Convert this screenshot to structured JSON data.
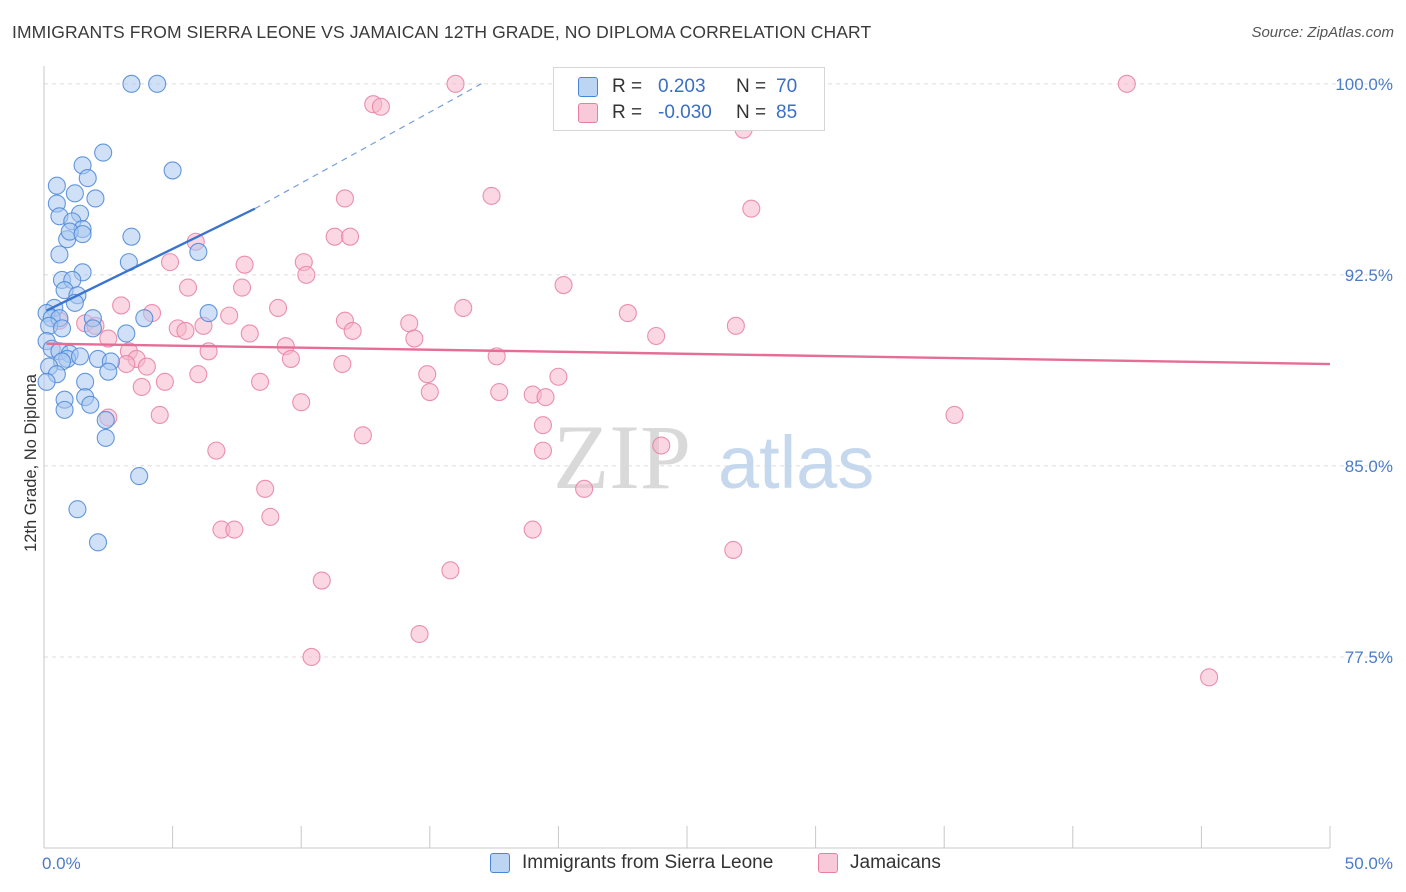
{
  "title": "IMMIGRANTS FROM SIERRA LEONE VS JAMAICAN 12TH GRADE, NO DIPLOMA CORRELATION CHART",
  "source": "Source: ZipAtlas.com",
  "watermark": {
    "zip": "ZIP",
    "atlas": "atlas"
  },
  "legend": {
    "rows": [
      {
        "r_label": "R =",
        "r_value": "0.203",
        "n_label": "N =",
        "n_value": "70",
        "color": "#4a86d8"
      },
      {
        "r_label": "R =",
        "r_value": "-0.030",
        "n_label": "N =",
        "n_value": "85",
        "color": "#e87fa3"
      }
    ]
  },
  "bottom_legend": [
    "Immigrants from Sierra Leone",
    "Jamaicans"
  ],
  "colors": {
    "blue_fill": "#a9c8f0",
    "blue_stroke": "#4a86d8",
    "blue_line": "#3a74cf",
    "pink_fill": "#f5b6cb",
    "pink_stroke": "#e87fa3",
    "pink_line": "#e56d97",
    "grid": "#dcdcdc",
    "tick_text": "#4a7cc9"
  },
  "chart_data": {
    "type": "scatter",
    "xlabel": "",
    "ylabel": "12th Grade, No Diploma",
    "xlim": [
      0,
      50
    ],
    "ylim": [
      70.0,
      100.7
    ],
    "x_tick_labels": [
      {
        "value": 0,
        "label": "0.0%"
      },
      {
        "value": 50,
        "label": "50.0%"
      }
    ],
    "y_tick_labels": [
      {
        "value": 100.0,
        "label": "100.0%"
      },
      {
        "value": 92.5,
        "label": "92.5%"
      },
      {
        "value": 85.0,
        "label": "85.0%"
      },
      {
        "value": 77.5,
        "label": "77.5%"
      }
    ],
    "grid": "horizontal dashed",
    "series": [
      {
        "name": "Immigrants from Sierra Leone",
        "color": "#4a86d8",
        "trend": {
          "x0": 0.1,
          "y0": 91.1,
          "x1": 8.2,
          "y1": 95.1,
          "dash_to_x": 17.0,
          "dash_to_y": 100.0
        },
        "points": [
          [
            3.4,
            100.0
          ],
          [
            4.4,
            100.0
          ],
          [
            2.3,
            97.3
          ],
          [
            1.5,
            96.8
          ],
          [
            1.7,
            96.3
          ],
          [
            5.0,
            96.6
          ],
          [
            0.5,
            96.0
          ],
          [
            1.2,
            95.7
          ],
          [
            0.5,
            95.3
          ],
          [
            2.0,
            95.5
          ],
          [
            1.4,
            94.9
          ],
          [
            0.6,
            94.8
          ],
          [
            1.1,
            94.6
          ],
          [
            1.5,
            94.3
          ],
          [
            3.4,
            94.0
          ],
          [
            0.9,
            93.9
          ],
          [
            1.0,
            94.2
          ],
          [
            1.5,
            94.1
          ],
          [
            0.6,
            93.3
          ],
          [
            6.0,
            93.4
          ],
          [
            3.3,
            93.0
          ],
          [
            1.5,
            92.6
          ],
          [
            0.7,
            92.3
          ],
          [
            1.1,
            92.3
          ],
          [
            0.8,
            91.9
          ],
          [
            1.3,
            91.7
          ],
          [
            1.2,
            91.4
          ],
          [
            0.4,
            91.2
          ],
          [
            0.1,
            91.0
          ],
          [
            0.3,
            90.8
          ],
          [
            0.6,
            90.8
          ],
          [
            1.9,
            90.8
          ],
          [
            6.4,
            91.0
          ],
          [
            3.9,
            90.8
          ],
          [
            0.2,
            90.5
          ],
          [
            0.7,
            90.4
          ],
          [
            1.9,
            90.4
          ],
          [
            3.2,
            90.2
          ],
          [
            0.1,
            89.9
          ],
          [
            0.3,
            89.6
          ],
          [
            0.6,
            89.5
          ],
          [
            1.0,
            89.4
          ],
          [
            0.9,
            89.2
          ],
          [
            1.4,
            89.3
          ],
          [
            0.7,
            89.1
          ],
          [
            2.1,
            89.2
          ],
          [
            2.6,
            89.1
          ],
          [
            0.2,
            88.9
          ],
          [
            0.5,
            88.6
          ],
          [
            2.5,
            88.7
          ],
          [
            0.1,
            88.3
          ],
          [
            1.6,
            88.3
          ],
          [
            0.8,
            87.6
          ],
          [
            1.6,
            87.7
          ],
          [
            1.8,
            87.4
          ],
          [
            0.8,
            87.2
          ],
          [
            2.4,
            86.8
          ],
          [
            2.4,
            86.1
          ],
          [
            3.7,
            84.6
          ],
          [
            1.3,
            83.3
          ],
          [
            2.1,
            82.0
          ]
        ]
      },
      {
        "name": "Jamaicans",
        "color": "#e87fa3",
        "trend": {
          "x0": 0.1,
          "y0": 89.8,
          "x1": 50.0,
          "y1": 89.0
        },
        "points": [
          [
            16.0,
            100.0
          ],
          [
            42.1,
            100.0
          ],
          [
            12.8,
            99.2
          ],
          [
            13.1,
            99.1
          ],
          [
            27.2,
            98.2
          ],
          [
            11.7,
            95.5
          ],
          [
            17.4,
            95.6
          ],
          [
            27.5,
            95.1
          ],
          [
            11.3,
            94.0
          ],
          [
            11.9,
            94.0
          ],
          [
            5.9,
            93.8
          ],
          [
            4.9,
            93.0
          ],
          [
            7.8,
            92.9
          ],
          [
            10.1,
            93.0
          ],
          [
            10.2,
            92.5
          ],
          [
            5.6,
            92.0
          ],
          [
            7.7,
            92.0
          ],
          [
            20.2,
            92.1
          ],
          [
            3.0,
            91.3
          ],
          [
            9.1,
            91.2
          ],
          [
            16.3,
            91.2
          ],
          [
            22.7,
            91.0
          ],
          [
            4.2,
            91.0
          ],
          [
            7.2,
            90.9
          ],
          [
            11.7,
            90.7
          ],
          [
            14.2,
            90.6
          ],
          [
            26.9,
            90.5
          ],
          [
            0.6,
            90.7
          ],
          [
            1.6,
            90.6
          ],
          [
            2.0,
            90.5
          ],
          [
            5.2,
            90.4
          ],
          [
            6.2,
            90.5
          ],
          [
            12.0,
            90.3
          ],
          [
            14.4,
            90.0
          ],
          [
            5.5,
            90.3
          ],
          [
            8.0,
            90.2
          ],
          [
            2.5,
            90.0
          ],
          [
            23.8,
            90.1
          ],
          [
            9.4,
            89.7
          ],
          [
            6.4,
            89.5
          ],
          [
            3.3,
            89.5
          ],
          [
            3.6,
            89.2
          ],
          [
            9.6,
            89.2
          ],
          [
            17.6,
            89.3
          ],
          [
            11.6,
            89.0
          ],
          [
            3.2,
            89.0
          ],
          [
            4.0,
            88.9
          ],
          [
            6.0,
            88.6
          ],
          [
            14.9,
            88.6
          ],
          [
            20.0,
            88.5
          ],
          [
            8.4,
            88.3
          ],
          [
            4.7,
            88.3
          ],
          [
            3.8,
            88.1
          ],
          [
            15.0,
            87.9
          ],
          [
            17.7,
            87.9
          ],
          [
            19.0,
            87.8
          ],
          [
            19.5,
            87.7
          ],
          [
            10.0,
            87.5
          ],
          [
            2.5,
            86.9
          ],
          [
            4.5,
            87.0
          ],
          [
            35.4,
            87.0
          ],
          [
            19.4,
            86.6
          ],
          [
            12.4,
            86.2
          ],
          [
            24.0,
            85.8
          ],
          [
            6.7,
            85.6
          ],
          [
            19.4,
            85.6
          ],
          [
            21.0,
            84.1
          ],
          [
            8.6,
            84.1
          ],
          [
            8.8,
            83.0
          ],
          [
            6.9,
            82.5
          ],
          [
            7.4,
            82.5
          ],
          [
            19.0,
            82.5
          ],
          [
            26.8,
            81.7
          ],
          [
            15.8,
            80.9
          ],
          [
            10.8,
            80.5
          ],
          [
            14.6,
            78.4
          ],
          [
            10.4,
            77.5
          ],
          [
            45.3,
            76.7
          ]
        ]
      }
    ]
  }
}
